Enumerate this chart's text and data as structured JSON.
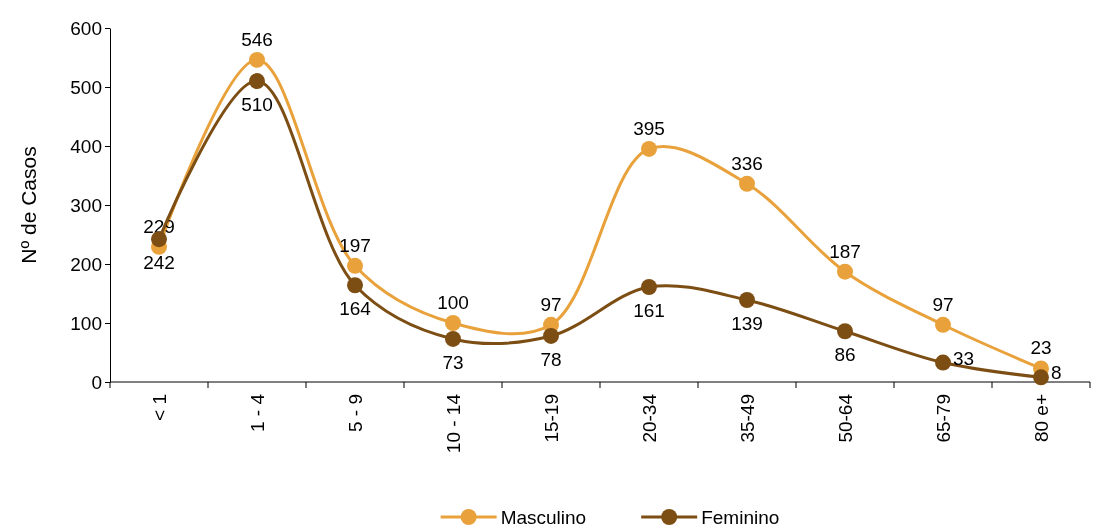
{
  "chart_data": {
    "type": "line",
    "ylabel": "Nº de Casos",
    "categories": [
      "< 1",
      "1 - 4",
      "5 - 9",
      "10 - 14",
      "15-19",
      "20-34",
      "35-49",
      "50-64",
      "65-79",
      "80 e+"
    ],
    "series": [
      {
        "name": "Masculino",
        "color": "#e9a23b",
        "values": [
          229,
          546,
          197,
          100,
          97,
          395,
          336,
          187,
          97,
          23
        ]
      },
      {
        "name": "Feminino",
        "color": "#7d4e13",
        "values": [
          242,
          510,
          164,
          73,
          78,
          161,
          139,
          86,
          33,
          8
        ]
      }
    ],
    "ylim": [
      0,
      600
    ],
    "yticks": [
      0,
      100,
      200,
      300,
      400,
      500,
      600
    ],
    "grid": false,
    "legend": "bottom",
    "marker": "circle",
    "line_style": "solid",
    "data_labels": true
  }
}
